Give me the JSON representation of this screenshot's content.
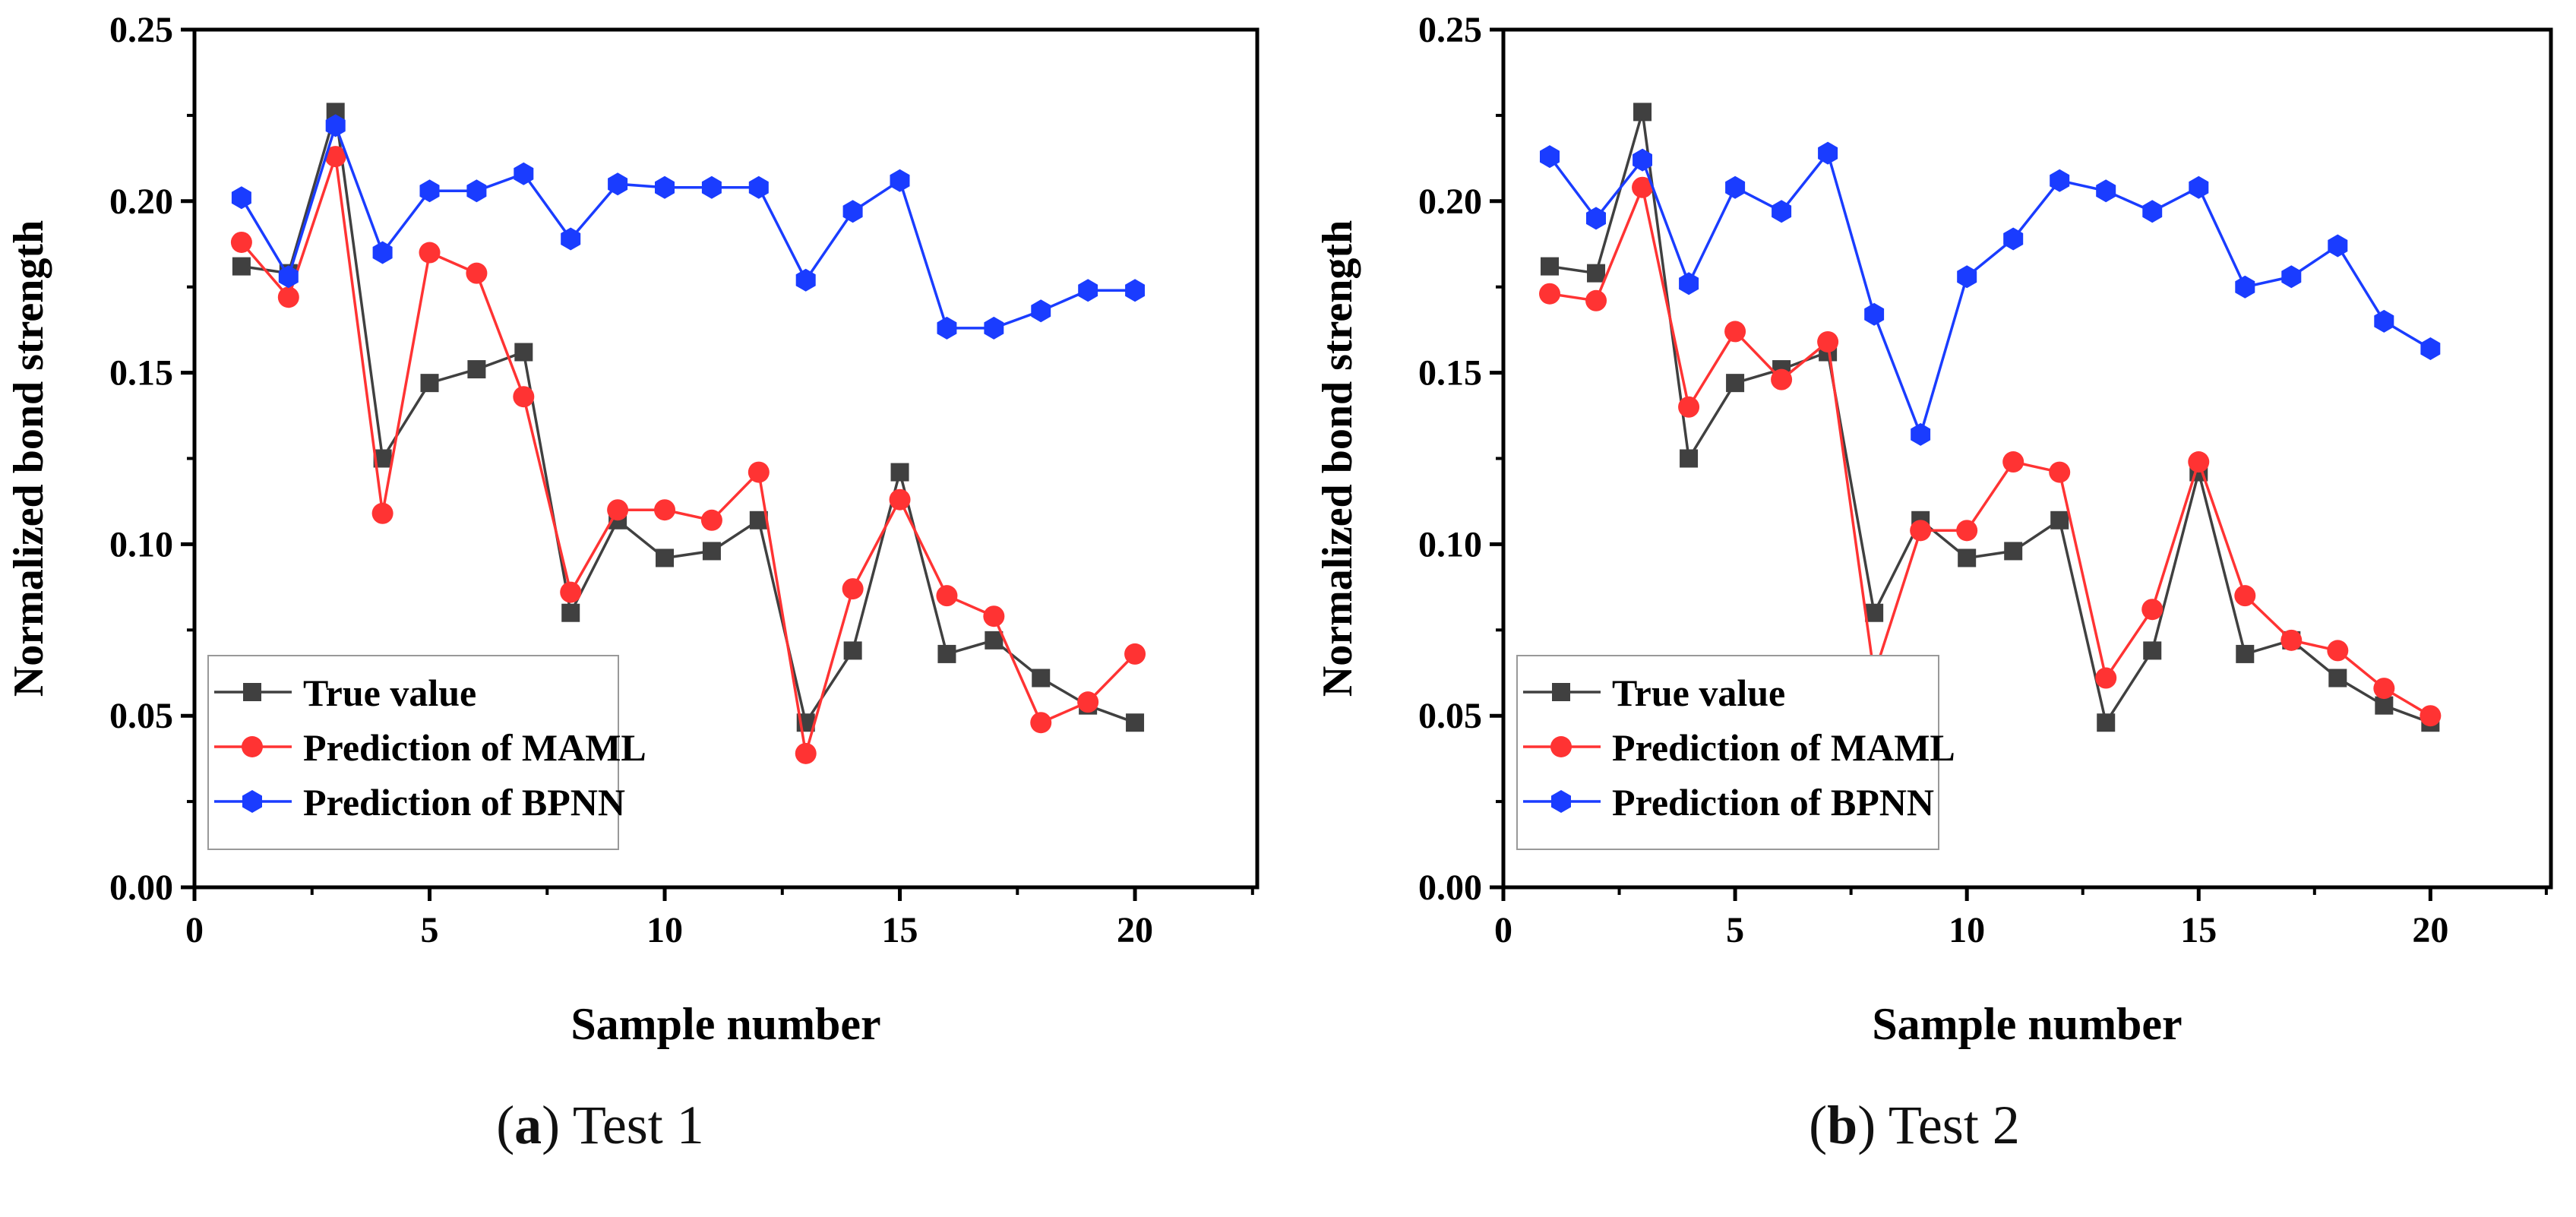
{
  "chart_data": [
    {
      "type": "line",
      "caption_label": "a",
      "caption_text": "Test 1",
      "xlabel": "Sample number",
      "ylabel": "Normalized bond strength",
      "xlim": [
        0,
        22.6
      ],
      "ylim": [
        0,
        0.25
      ],
      "xticks": [
        0,
        5,
        10,
        15,
        20
      ],
      "xtick_labels": [
        "0",
        "5",
        "10",
        "15",
        "20"
      ],
      "yticks": [
        0,
        0.05,
        0.1,
        0.15,
        0.2,
        0.25
      ],
      "ytick_labels": [
        "0.00",
        "0.05",
        "0.10",
        "0.15",
        "0.20",
        "0.25"
      ],
      "grid": false,
      "legend_position": "bottom-left",
      "x": [
        1,
        2,
        3,
        4,
        5,
        6,
        7,
        8,
        9,
        10,
        11,
        12,
        13,
        14,
        15,
        16,
        17,
        18,
        19,
        20
      ],
      "series": [
        {
          "name": "True value",
          "color": "#404040",
          "marker": "square",
          "values": [
            0.181,
            0.179,
            0.226,
            0.125,
            0.147,
            0.151,
            0.156,
            0.08,
            0.107,
            0.096,
            0.098,
            0.107,
            0.048,
            0.069,
            0.121,
            0.068,
            0.072,
            0.061,
            0.053,
            0.048
          ]
        },
        {
          "name": "Prediction of MAML",
          "color": "#ff3333",
          "marker": "circle",
          "values": [
            0.188,
            0.172,
            0.213,
            0.109,
            0.185,
            0.179,
            0.143,
            0.086,
            0.11,
            0.11,
            0.107,
            0.121,
            0.039,
            0.087,
            0.113,
            0.085,
            0.079,
            0.048,
            0.054,
            0.068
          ]
        },
        {
          "name": "Prediction of BPNN",
          "color": "#1a3cff",
          "marker": "hexagon",
          "values": [
            0.201,
            0.178,
            0.222,
            0.185,
            0.203,
            0.203,
            0.208,
            0.189,
            0.205,
            0.204,
            0.204,
            0.204,
            0.177,
            0.197,
            0.206,
            0.163,
            0.163,
            0.168,
            0.174,
            0.174
          ]
        }
      ]
    },
    {
      "type": "line",
      "caption_label": "b",
      "caption_text": "Test 2",
      "xlabel": "Sample number",
      "ylabel": "Normalized bond strength",
      "xlim": [
        0,
        22.6
      ],
      "ylim": [
        0,
        0.25
      ],
      "xticks": [
        0,
        5,
        10,
        15,
        20
      ],
      "xtick_labels": [
        "0",
        "5",
        "10",
        "15",
        "20"
      ],
      "yticks": [
        0,
        0.05,
        0.1,
        0.15,
        0.2,
        0.25
      ],
      "ytick_labels": [
        "0.00",
        "0.05",
        "0.10",
        "0.15",
        "0.20",
        "0.25"
      ],
      "grid": false,
      "legend_position": "bottom-left",
      "x": [
        1,
        2,
        3,
        4,
        5,
        6,
        7,
        8,
        9,
        10,
        11,
        12,
        13,
        14,
        15,
        16,
        17,
        18,
        19,
        20
      ],
      "series": [
        {
          "name": "True value",
          "color": "#404040",
          "marker": "square",
          "values": [
            0.181,
            0.179,
            0.226,
            0.125,
            0.147,
            0.151,
            0.156,
            0.08,
            0.107,
            0.096,
            0.098,
            0.107,
            0.048,
            0.069,
            0.121,
            0.068,
            0.072,
            0.061,
            0.053,
            0.048
          ]
        },
        {
          "name": "Prediction of MAML",
          "color": "#ff3333",
          "marker": "circle",
          "values": [
            0.173,
            0.171,
            0.204,
            0.14,
            0.162,
            0.148,
            0.159,
            0.062,
            0.104,
            0.104,
            0.124,
            0.121,
            0.061,
            0.081,
            0.124,
            0.085,
            0.072,
            0.069,
            0.058,
            0.05
          ]
        },
        {
          "name": "Prediction of BPNN",
          "color": "#1a3cff",
          "marker": "hexagon",
          "values": [
            0.213,
            0.195,
            0.212,
            0.176,
            0.204,
            0.197,
            0.214,
            0.167,
            0.132,
            0.178,
            0.189,
            0.206,
            0.203,
            0.197,
            0.204,
            0.175,
            0.178,
            0.187,
            0.165,
            0.157
          ]
        }
      ]
    }
  ]
}
